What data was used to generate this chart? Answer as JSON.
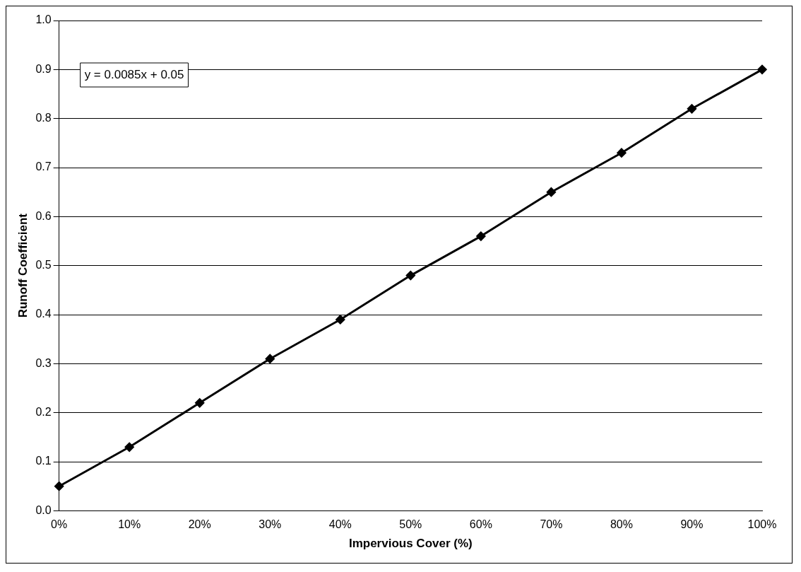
{
  "chart_data": {
    "type": "line",
    "xlabel": "Impervious Cover (%)",
    "ylabel": "Runoff Coefficient",
    "categories": [
      "0%",
      "10%",
      "20%",
      "30%",
      "40%",
      "50%",
      "60%",
      "70%",
      "80%",
      "90%",
      "100%"
    ],
    "series": [
      {
        "color": "#000000",
        "values": [
          0.05,
          0.13,
          0.22,
          0.31,
          0.39,
          0.48,
          0.56,
          0.65,
          0.73,
          0.82,
          0.9
        ]
      }
    ],
    "ylim": [
      0,
      1
    ],
    "yticks": [
      {
        "value": 0,
        "label": "0.0"
      },
      {
        "value": 0.1,
        "label": "0.1"
      },
      {
        "value": 0.2,
        "label": "0.2"
      },
      {
        "value": 0.3,
        "label": "0.3"
      },
      {
        "value": 0.4,
        "label": "0.4"
      },
      {
        "value": 0.5,
        "label": "0.5"
      },
      {
        "value": 0.6,
        "label": "0.6"
      },
      {
        "value": 0.7,
        "label": "0.7"
      },
      {
        "value": 0.8,
        "label": "0.8"
      },
      {
        "value": 0.9,
        "label": "0.9"
      },
      {
        "value": 1,
        "label": "1.0"
      }
    ],
    "grid": "y",
    "legend": false,
    "marker": "diamond",
    "line_style": "solid",
    "annotations": [
      "y = 0.0085x + 0.05"
    ]
  }
}
